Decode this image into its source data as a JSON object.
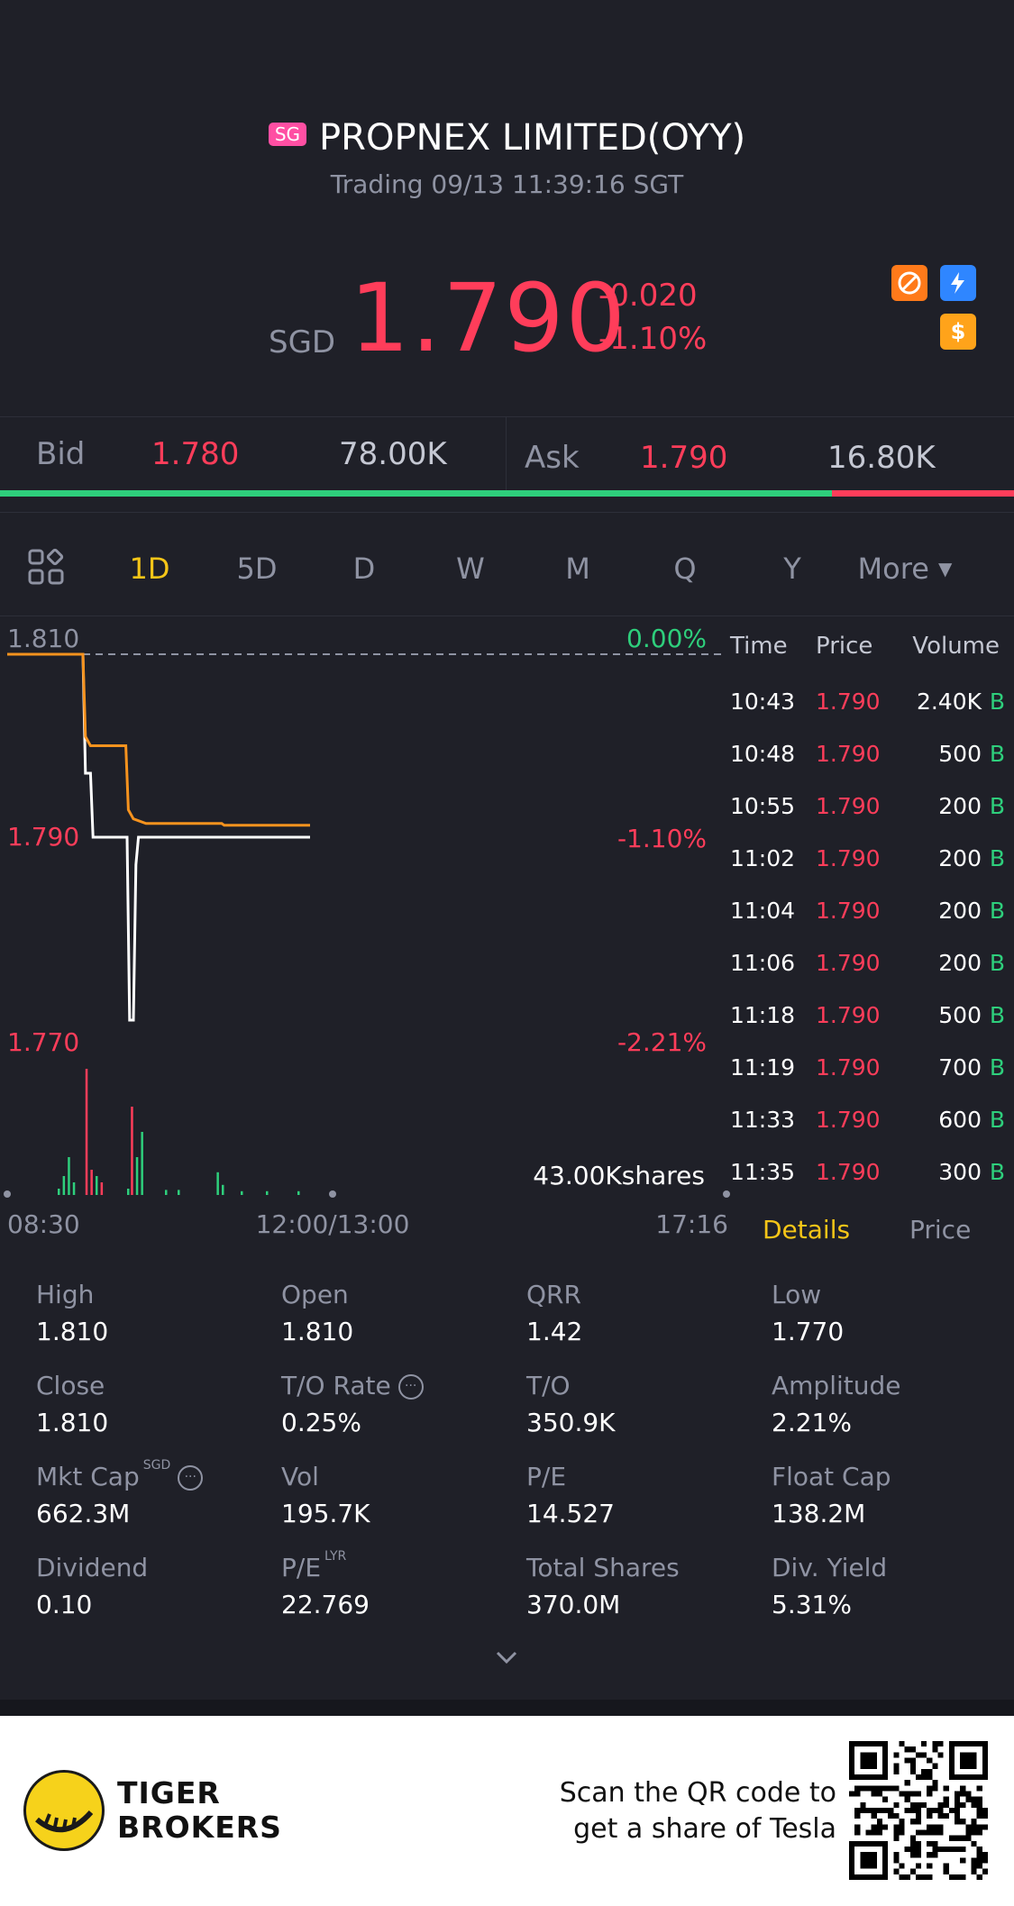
{
  "header": {
    "market_badge": "SG",
    "title": "PROPNEX LIMITED(OYY)",
    "status": "Trading 09/13 11:39:16 SGT"
  },
  "quote": {
    "currency": "SGD",
    "price": "1.790",
    "change": "-0.020",
    "change_pct": "-1.10%"
  },
  "bidask": {
    "bid_label": "Bid",
    "bid_price": "1.780",
    "bid_size": "78.00K",
    "ask_label": "Ask",
    "ask_price": "1.790",
    "ask_size": "16.80K",
    "bid_ratio": 0.82
  },
  "tabs": [
    "1D",
    "5D",
    "D",
    "W",
    "M",
    "Q",
    "Y",
    "More"
  ],
  "active_tab": "1D",
  "chart_data": {
    "type": "line",
    "y_labels": {
      "top": "1.810",
      "mid": "1.790",
      "bottom": "1.770"
    },
    "pct_labels": {
      "top": "0.00%",
      "mid": "-1.10%",
      "bottom": "-2.21%"
    },
    "x_labels": {
      "left": "08:30",
      "center": "12:00/13:00",
      "right": "17:16"
    },
    "volume_label": "43.00Kshares",
    "ylim": [
      1.77,
      1.81
    ],
    "prev_close": 1.81,
    "series": [
      {
        "color": "#ffffff",
        "points": [
          [
            0,
            1.81
          ],
          [
            60,
            1.81
          ],
          [
            62,
            1.797
          ],
          [
            66,
            1.797
          ],
          [
            68,
            1.79
          ],
          [
            95,
            1.79
          ],
          [
            97,
            1.77
          ],
          [
            100,
            1.77
          ],
          [
            102,
            1.787
          ],
          [
            104,
            1.79
          ],
          [
            240,
            1.79
          ]
        ]
      },
      {
        "color": "#f7931e",
        "points": [
          [
            0,
            1.81
          ],
          [
            60,
            1.81
          ],
          [
            62,
            1.801
          ],
          [
            66,
            1.8
          ],
          [
            94,
            1.8
          ],
          [
            96,
            1.793
          ],
          [
            100,
            1.792
          ],
          [
            110,
            1.7915
          ],
          [
            170,
            1.7915
          ],
          [
            172,
            1.7913
          ],
          [
            240,
            1.7913
          ]
        ]
      }
    ],
    "volume_bars": [
      {
        "x": 40,
        "v": 0.05,
        "c": "#2ecf7c"
      },
      {
        "x": 44,
        "v": 0.15,
        "c": "#2ecf7c"
      },
      {
        "x": 48,
        "v": 0.3,
        "c": "#2ecf7c"
      },
      {
        "x": 52,
        "v": 0.1,
        "c": "#2ecf7c"
      },
      {
        "x": 62,
        "v": 1.0,
        "c": "#ff3d5a"
      },
      {
        "x": 66,
        "v": 0.2,
        "c": "#ff3d5a"
      },
      {
        "x": 70,
        "v": 0.15,
        "c": "#2ecf7c"
      },
      {
        "x": 74,
        "v": 0.1,
        "c": "#ff3d5a"
      },
      {
        "x": 95,
        "v": 0.05,
        "c": "#2ecf7c"
      },
      {
        "x": 98,
        "v": 0.7,
        "c": "#ff3d5a"
      },
      {
        "x": 102,
        "v": 0.3,
        "c": "#2ecf7c"
      },
      {
        "x": 106,
        "v": 0.5,
        "c": "#2ecf7c"
      },
      {
        "x": 125,
        "v": 0.04,
        "c": "#2ecf7c"
      },
      {
        "x": 135,
        "v": 0.04,
        "c": "#2ecf7c"
      },
      {
        "x": 166,
        "v": 0.18,
        "c": "#2ecf7c"
      },
      {
        "x": 170,
        "v": 0.08,
        "c": "#2ecf7c"
      },
      {
        "x": 185,
        "v": 0.03,
        "c": "#2ecf7c"
      },
      {
        "x": 205,
        "v": 0.03,
        "c": "#2ecf7c"
      },
      {
        "x": 230,
        "v": 0.03,
        "c": "#2ecf7c"
      }
    ]
  },
  "trades_header": {
    "time": "Time",
    "price": "Price",
    "volume": "Volume"
  },
  "trades": [
    {
      "time": "10:43",
      "price": "1.790",
      "volume": "2.40K",
      "flag": "B"
    },
    {
      "time": "10:48",
      "price": "1.790",
      "volume": "500",
      "flag": "B"
    },
    {
      "time": "10:55",
      "price": "1.790",
      "volume": "200",
      "flag": "B"
    },
    {
      "time": "11:02",
      "price": "1.790",
      "volume": "200",
      "flag": "B"
    },
    {
      "time": "11:04",
      "price": "1.790",
      "volume": "200",
      "flag": "B"
    },
    {
      "time": "11:06",
      "price": "1.790",
      "volume": "200",
      "flag": "B"
    },
    {
      "time": "11:18",
      "price": "1.790",
      "volume": "500",
      "flag": "B"
    },
    {
      "time": "11:19",
      "price": "1.790",
      "volume": "700",
      "flag": "B"
    },
    {
      "time": "11:33",
      "price": "1.790",
      "volume": "600",
      "flag": "B"
    },
    {
      "time": "11:35",
      "price": "1.790",
      "volume": "300",
      "flag": "B"
    }
  ],
  "side_tabs": {
    "details": "Details",
    "price": "Price"
  },
  "stats": [
    {
      "label": "High",
      "value": "1.810"
    },
    {
      "label": "Open",
      "value": "1.810"
    },
    {
      "label": "QRR",
      "value": "1.42"
    },
    {
      "label": "Low",
      "value": "1.770"
    },
    {
      "label": "Close",
      "value": "1.810"
    },
    {
      "label": "T/O Rate",
      "value": "0.25%"
    },
    {
      "label": "T/O",
      "value": "350.9K"
    },
    {
      "label": "Amplitude",
      "value": "2.21%"
    },
    {
      "label": "Mkt Cap",
      "value": "662.3M",
      "sup": "SGD"
    },
    {
      "label": "Vol",
      "value": "195.7K"
    },
    {
      "label": "P/E",
      "value": "14.527"
    },
    {
      "label": "Float Cap",
      "value": "138.2M"
    },
    {
      "label": "Dividend",
      "value": "0.10"
    },
    {
      "label": "P/E",
      "value": "22.769",
      "sup": "LYR"
    },
    {
      "label": "Total Shares",
      "value": "370.0M"
    },
    {
      "label": "Div. Yield",
      "value": "5.31%"
    }
  ],
  "footer": {
    "brand_line1": "TIGER",
    "brand_line2": "BROKERS",
    "scan_line1": "Scan the QR code to",
    "scan_line2": "get a share of Tesla"
  },
  "icons": [
    "no-margin-icon",
    "flash-icon",
    "dollar-icon",
    "grid-icon",
    "info-icon",
    "chevron-down-icon",
    "qr-code-icon"
  ],
  "colors": {
    "red": "#ff3d5a",
    "green": "#2ecf7c",
    "accent": "#f5c518",
    "avg_line": "#f7931e",
    "bg": "#1f2028"
  }
}
